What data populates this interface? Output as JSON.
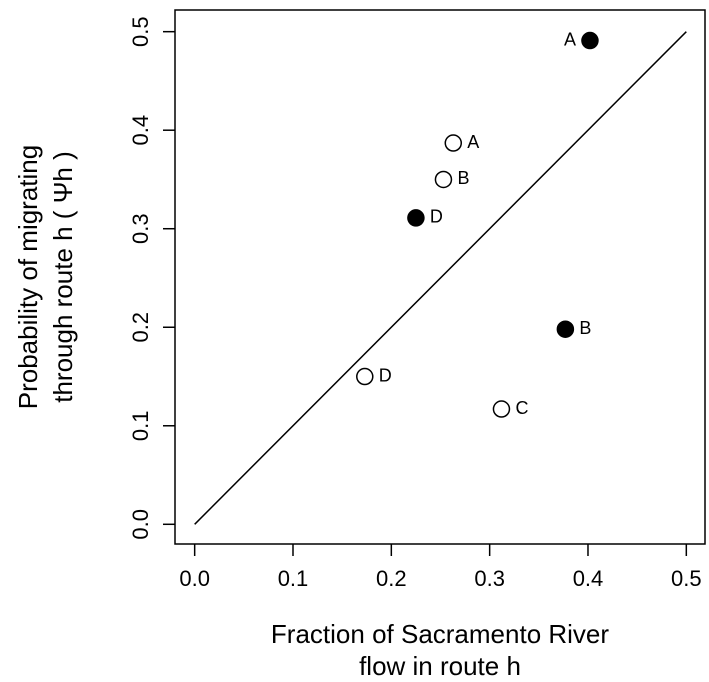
{
  "chart_data": {
    "type": "scatter",
    "xlabel": [
      "Fraction of Sacramento River",
      "flow in route h"
    ],
    "ylabel": [
      "Probability of migrating",
      "through route h ( Ψh )"
    ],
    "xlim": [
      -0.02,
      0.519
    ],
    "ylim": [
      -0.02,
      0.522
    ],
    "xticks": [
      {
        "value": 0,
        "label": "0.0"
      },
      0.1,
      0.2,
      0.3,
      0.4,
      0.5
    ],
    "yticks": [
      {
        "value": 0,
        "label": "0.0"
      },
      0.1,
      0.2,
      0.3,
      0.4,
      0.5
    ],
    "series": [
      {
        "color": "#000000",
        "x": [
          0.402,
          0.377,
          0.225
        ],
        "y": [
          0.491,
          0.198,
          0.311
        ],
        "labels": [
          "A",
          "B",
          "D"
        ]
      },
      {
        "color": "#ffffff",
        "x": [
          0.263,
          0.253,
          0.312,
          0.173
        ],
        "y": [
          0.387,
          0.35,
          0.117,
          0.15
        ],
        "labels": [
          "A",
          "B",
          "C",
          "D"
        ]
      }
    ],
    "lines": [
      {
        "color": "#000000",
        "x": [
          0,
          0.5
        ],
        "y": [
          0,
          0.5
        ]
      }
    ]
  }
}
